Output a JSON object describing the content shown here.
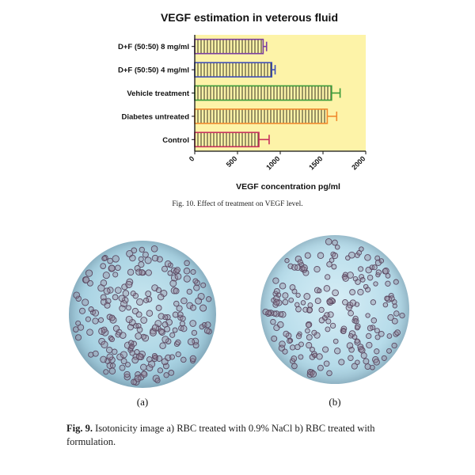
{
  "chart_data": {
    "type": "bar",
    "orientation": "horizontal",
    "title": "VEGF estimation in veterous fluid",
    "xlabel": "VEGF concentration pg/ml",
    "ylabel": "",
    "xlim": [
      0,
      2000
    ],
    "xticks": [
      "0",
      "500",
      "1000",
      "1500",
      "2000"
    ],
    "categories": [
      "D+F (50:50) 8 mg/ml",
      "D+F (50:50) 4 mg/ml",
      "Vehicle treatment",
      "Diabetes untreated",
      "Control"
    ],
    "values": [
      800,
      900,
      1600,
      1550,
      750
    ],
    "errors": [
      40,
      40,
      100,
      110,
      120
    ],
    "colors": [
      "#7b3fa0",
      "#3f4fb8",
      "#3a9a3a",
      "#f08a2e",
      "#c8305c"
    ],
    "plot_background": "#fdf3a8",
    "grid": false,
    "legend": "none"
  },
  "fig10_caption": "Fig. 10. Effect of treatment on VEGF level.",
  "panel_a_label": "(a)",
  "panel_b_label": "(b)",
  "fig9_label": "Fig. 9.",
  "fig9_text": "Isotonicity image a) RBC treated with 0.9% NaCl b) RBC treated with formulation."
}
